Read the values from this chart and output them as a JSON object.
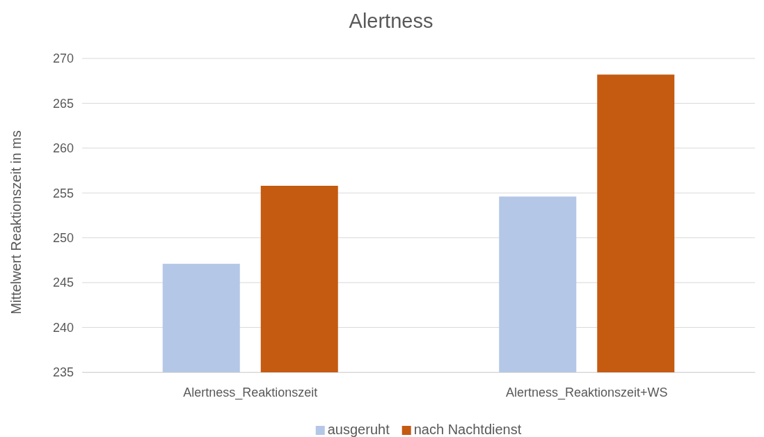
{
  "chart_data": {
    "type": "bar",
    "title": "Alertness",
    "ylabel": "Mittelwert Reaktionszeit in ms",
    "categories": [
      "Alertness_Reaktionszeit",
      "Alertness_Reaktionszeit+WS"
    ],
    "series": [
      {
        "name": "ausgeruht",
        "color": "#b4c7e7",
        "values": [
          247.1,
          254.6
        ]
      },
      {
        "name": "nach Nachtdienst",
        "color": "#c55a11",
        "values": [
          255.8,
          268.2
        ]
      }
    ],
    "ylim": [
      235,
      270
    ],
    "yticks": [
      235,
      240,
      245,
      250,
      255,
      260,
      265,
      270
    ],
    "grid": "y",
    "legend": "bottom"
  }
}
